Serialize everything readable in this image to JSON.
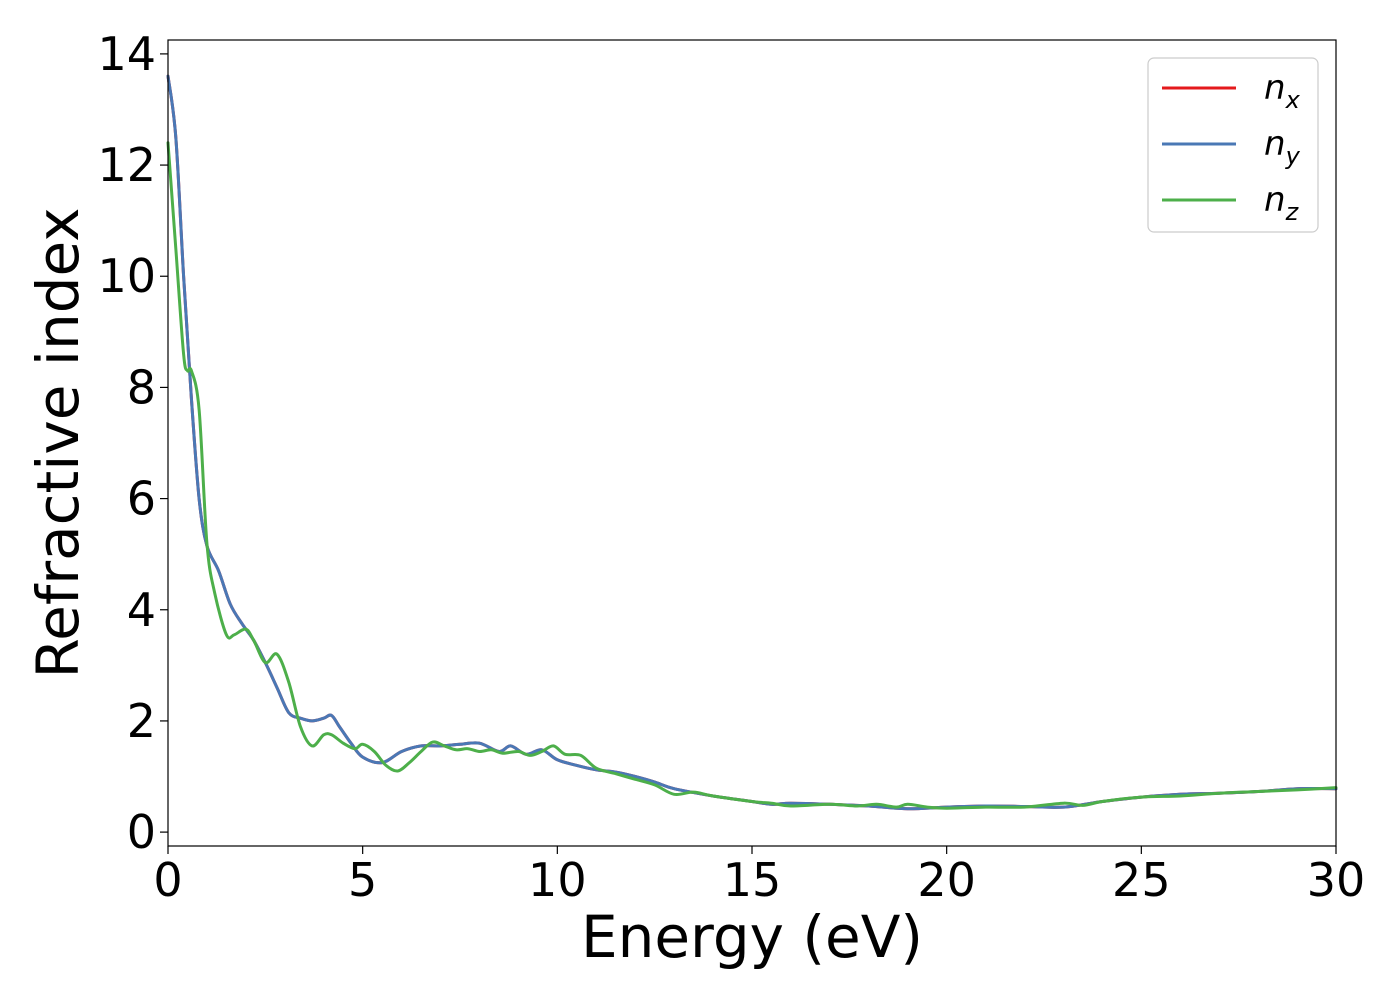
{
  "chart_data": {
    "type": "line",
    "xlabel": "Energy (eV)",
    "ylabel": "Refractive index",
    "xlim": [
      0,
      30
    ],
    "ylim": [
      -0.25,
      14.25
    ],
    "xticks": [
      0,
      5,
      10,
      15,
      20,
      25,
      30
    ],
    "yticks": [
      0,
      2,
      4,
      6,
      8,
      10,
      12,
      14
    ],
    "grid": false,
    "legend_position": "top-right",
    "series": [
      {
        "name_base": "n",
        "name_sub": "x",
        "color": "#e41a1c",
        "x": [
          0,
          0.2,
          0.4,
          0.6,
          0.8,
          1.0,
          1.3,
          1.6,
          1.9,
          2.2,
          2.5,
          2.8,
          3.1,
          3.4,
          3.7,
          4.0,
          4.2,
          4.4,
          4.7,
          5.0,
          5.5,
          6.0,
          6.5,
          7.0,
          7.5,
          8.0,
          8.5,
          8.8,
          9.2,
          9.6,
          10.0,
          10.5,
          11.0,
          11.5,
          12.0,
          12.5,
          13.0,
          14.0,
          15.0,
          15.5,
          16.0,
          17.0,
          18.0,
          19.0,
          20.0,
          21.0,
          22.0,
          23.0,
          24.0,
          25.0,
          26.0,
          27.0,
          28.0,
          29.0,
          30.0
        ],
        "y": [
          13.6,
          12.5,
          10.0,
          7.8,
          6.0,
          5.15,
          4.7,
          4.1,
          3.75,
          3.45,
          3.05,
          2.6,
          2.15,
          2.05,
          2.0,
          2.05,
          2.1,
          1.9,
          1.6,
          1.35,
          1.25,
          1.45,
          1.55,
          1.55,
          1.58,
          1.6,
          1.45,
          1.55,
          1.4,
          1.48,
          1.3,
          1.2,
          1.12,
          1.08,
          1.0,
          0.9,
          0.78,
          0.65,
          0.55,
          0.5,
          0.52,
          0.5,
          0.47,
          0.42,
          0.45,
          0.47,
          0.46,
          0.45,
          0.55,
          0.63,
          0.68,
          0.7,
          0.73,
          0.78,
          0.78
        ]
      },
      {
        "name_base": "n",
        "name_sub": "y",
        "color": "#4a78b5",
        "x": [
          0,
          0.2,
          0.4,
          0.6,
          0.8,
          1.0,
          1.3,
          1.6,
          1.9,
          2.2,
          2.5,
          2.8,
          3.1,
          3.4,
          3.7,
          4.0,
          4.2,
          4.4,
          4.7,
          5.0,
          5.5,
          6.0,
          6.5,
          7.0,
          7.5,
          8.0,
          8.5,
          8.8,
          9.2,
          9.6,
          10.0,
          10.5,
          11.0,
          11.5,
          12.0,
          12.5,
          13.0,
          14.0,
          15.0,
          15.5,
          16.0,
          17.0,
          18.0,
          19.0,
          20.0,
          21.0,
          22.0,
          23.0,
          24.0,
          25.0,
          26.0,
          27.0,
          28.0,
          29.0,
          30.0
        ],
        "y": [
          13.6,
          12.5,
          10.0,
          7.8,
          6.0,
          5.15,
          4.7,
          4.1,
          3.75,
          3.45,
          3.05,
          2.6,
          2.15,
          2.05,
          2.0,
          2.05,
          2.1,
          1.9,
          1.6,
          1.35,
          1.25,
          1.45,
          1.55,
          1.55,
          1.58,
          1.6,
          1.45,
          1.55,
          1.4,
          1.48,
          1.3,
          1.2,
          1.12,
          1.08,
          1.0,
          0.9,
          0.78,
          0.65,
          0.55,
          0.5,
          0.52,
          0.5,
          0.47,
          0.42,
          0.45,
          0.47,
          0.46,
          0.45,
          0.55,
          0.63,
          0.68,
          0.7,
          0.73,
          0.78,
          0.78
        ]
      },
      {
        "name_base": "n",
        "name_sub": "z",
        "color": "#4daf4a",
        "x": [
          0,
          0.2,
          0.4,
          0.5,
          0.6,
          0.8,
          1.0,
          1.2,
          1.5,
          1.7,
          2.0,
          2.2,
          2.5,
          2.8,
          3.1,
          3.4,
          3.7,
          4.0,
          4.2,
          4.5,
          4.8,
          5.0,
          5.3,
          5.6,
          5.9,
          6.2,
          6.5,
          6.8,
          7.1,
          7.4,
          7.7,
          8.0,
          8.3,
          8.6,
          9.0,
          9.3,
          9.6,
          9.9,
          10.2,
          10.6,
          11.0,
          11.5,
          12.0,
          12.5,
          13.0,
          13.5,
          14.0,
          15.0,
          15.5,
          16.0,
          17.0,
          17.7,
          18.2,
          18.7,
          19.0,
          19.5,
          20.0,
          21.0,
          22.0,
          23.0,
          23.5,
          24.0,
          25.0,
          26.0,
          27.0,
          28.0,
          29.0,
          30.0
        ],
        "y": [
          12.4,
          10.5,
          8.6,
          8.3,
          8.3,
          7.6,
          5.2,
          4.3,
          3.55,
          3.55,
          3.65,
          3.45,
          3.05,
          3.2,
          2.7,
          1.9,
          1.55,
          1.75,
          1.75,
          1.6,
          1.5,
          1.58,
          1.45,
          1.2,
          1.1,
          1.25,
          1.45,
          1.62,
          1.55,
          1.48,
          1.5,
          1.45,
          1.48,
          1.42,
          1.45,
          1.38,
          1.45,
          1.55,
          1.4,
          1.38,
          1.15,
          1.05,
          0.95,
          0.85,
          0.68,
          0.72,
          0.65,
          0.55,
          0.52,
          0.47,
          0.5,
          0.47,
          0.5,
          0.45,
          0.5,
          0.45,
          0.43,
          0.45,
          0.45,
          0.52,
          0.48,
          0.55,
          0.63,
          0.65,
          0.7,
          0.73,
          0.76,
          0.8
        ]
      }
    ]
  }
}
